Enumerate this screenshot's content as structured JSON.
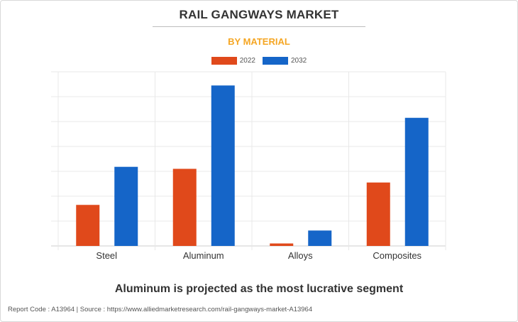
{
  "header": {
    "title": "RAIL GANGWAYS MARKET",
    "subtitle": "BY MATERIAL"
  },
  "chart_data": {
    "type": "bar",
    "categories": [
      "Steel",
      "Aluminum",
      "Alloys",
      "Composites"
    ],
    "series": [
      {
        "name": "2022",
        "color": "#e0491b",
        "values": [
          16.5,
          31,
          1,
          25.5
        ]
      },
      {
        "name": "2032",
        "color": "#1565c8",
        "values": [
          31.8,
          64.5,
          6.2,
          51.5
        ]
      }
    ],
    "ylim": [
      0,
      70
    ],
    "grid": true,
    "legend": "top-center",
    "xlabel": "",
    "ylabel": ""
  },
  "caption": "Aluminum is projected as the most lucrative segment",
  "footer": "Report Code : A13964  |  Source : https://www.alliedmarketresearch.com/rail-gangways-market-A13964"
}
